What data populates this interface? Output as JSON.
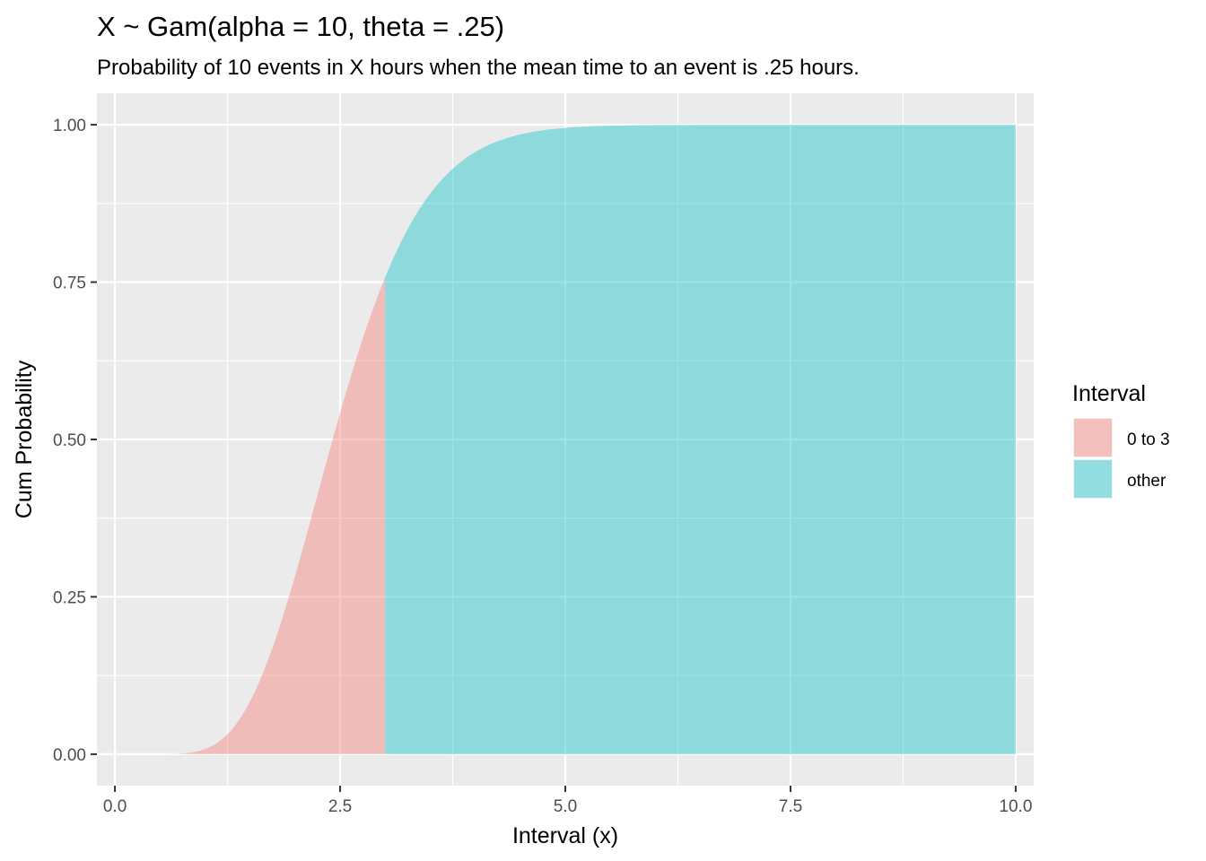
{
  "chart_data": {
    "type": "area",
    "title": "X ~ Gam(alpha = 10, theta = .25)",
    "subtitle": "Probability of 10 events in X hours when the mean time to an event is .25 hours.",
    "xlabel": "Interval (x)",
    "ylabel": "Cum Probability",
    "xlim": [
      -0.2,
      10.2
    ],
    "ylim": [
      -0.05,
      1.05
    ],
    "x_ticks": [
      0,
      2.5,
      5,
      7.5,
      10
    ],
    "x_tick_labels": [
      "0.0",
      "2.5",
      "5.0",
      "7.5",
      "10.0"
    ],
    "y_ticks": [
      0,
      0.25,
      0.5,
      0.75,
      1
    ],
    "y_tick_labels": [
      "0.00",
      "0.25",
      "0.50",
      "0.75",
      "1.00"
    ],
    "grid": true,
    "distribution": {
      "family": "gamma",
      "shape": 10,
      "scale": 0.25
    },
    "legend": {
      "title": "Interval",
      "position": "right",
      "entries": [
        "0 to 3",
        "other"
      ]
    },
    "series": [
      {
        "name": "0 to 3",
        "color": "#F8766D",
        "x_range": [
          0,
          3
        ],
        "x": [
          0,
          0.5,
          1,
          1.5,
          2,
          2.5,
          3
        ],
        "y": [
          0,
          0.0003,
          0.0081,
          0.0839,
          0.2834,
          0.5421,
          0.7576
        ]
      },
      {
        "name": "other",
        "color": "#00BFC4",
        "x_range": [
          3,
          10
        ],
        "x": [
          3,
          3.5,
          4,
          4.5,
          5,
          6,
          7,
          8,
          9,
          10
        ],
        "y": [
          0.7576,
          0.8906,
          0.9567,
          0.9846,
          0.995,
          0.9996,
          1,
          1,
          1,
          1
        ]
      }
    ],
    "fill_alpha": 0.4
  }
}
